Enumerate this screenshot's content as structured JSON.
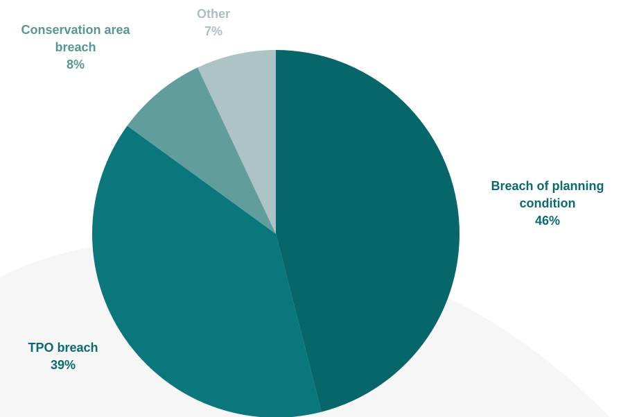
{
  "chart_data": {
    "type": "pie",
    "title": "",
    "slices": [
      {
        "label": "Breach of planning condition",
        "label_lines": [
          "Breach of planning",
          "condition"
        ],
        "value": 46,
        "value_text": "46%",
        "color": "#06666a",
        "label_color": "#0a6b6f"
      },
      {
        "label": "TPO breach",
        "label_lines": [
          "TPO breach"
        ],
        "value": 39,
        "value_text": "39%",
        "color": "#0a777d",
        "label_color": "#0a6b6f"
      },
      {
        "label": "Conservation area breach",
        "label_lines": [
          "Conservation area",
          "breach"
        ],
        "value": 8,
        "value_text": "8%",
        "color": "#629d9e",
        "label_color": "#5a9596"
      },
      {
        "label": "Other",
        "label_lines": [
          "Other"
        ],
        "value": 7,
        "value_text": "7%",
        "color": "#adc3c5",
        "label_color": "#aebfc1"
      }
    ],
    "start_angle_deg": 0,
    "direction": "clockwise",
    "legend": "none"
  },
  "colors": {
    "background": "#ffffff",
    "background_shape": "#f6f6f6"
  }
}
